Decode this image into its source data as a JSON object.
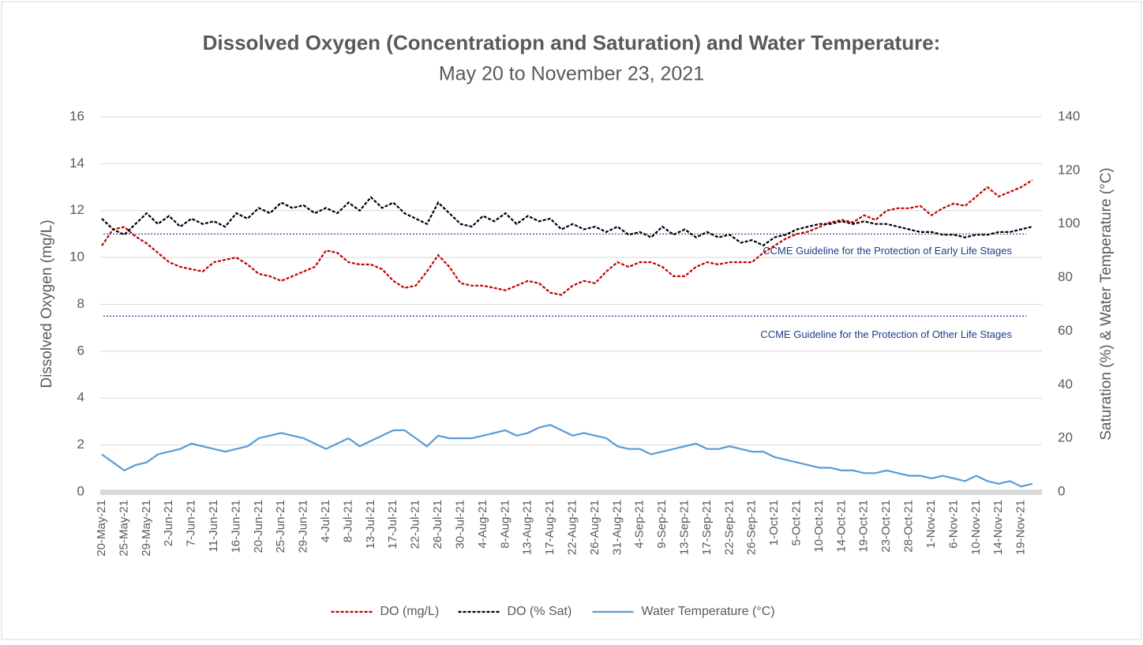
{
  "chart_data": {
    "type": "line",
    "title": "Dissolved Oxygen (Concentratiopn and Saturation) and Water Temperature:",
    "subtitle": "May 20 to November 23, 2021",
    "y_label": "Dissolved Oxygen (mg/L)",
    "y2_label": "Saturation (%) & Water Temperature (°C)",
    "categories": [
      "20-May-21",
      null,
      "25-May-21",
      null,
      "29-May-21",
      null,
      "2-Jun-21",
      null,
      "7-Jun-21",
      null,
      "11-Jun-21",
      null,
      "16-Jun-21",
      null,
      "20-Jun-21",
      null,
      "25-Jun-21",
      null,
      "29-Jun-21",
      null,
      "4-Jul-21",
      null,
      "8-Jul-21",
      null,
      "13-Jul-21",
      null,
      "17-Jul-21",
      null,
      "22-Jul-21",
      null,
      "26-Jul-21",
      null,
      "30-Jul-21",
      null,
      "4-Aug-21",
      null,
      "8-Aug-21",
      null,
      "13-Aug-21",
      null,
      "17-Aug-21",
      null,
      "22-Aug-21",
      null,
      "26-Aug-21",
      null,
      "31-Aug-21",
      null,
      "4-Sep-21",
      null,
      "9-Sep-21",
      null,
      "13-Sep-21",
      null,
      "17-Sep-21",
      null,
      "22-Sep-21",
      null,
      "26-Sep-21",
      null,
      "1-Oct-21",
      null,
      "5-Oct-21",
      null,
      "10-Oct-21",
      null,
      "14-Oct-21",
      null,
      "19-Oct-21",
      null,
      "23-Oct-21",
      null,
      "28-Oct-21",
      null,
      "1-Nov-21",
      null,
      "6-Nov-21",
      null,
      "10-Nov-21",
      null,
      "14-Nov-21",
      null,
      "19-Nov-21",
      null
    ],
    "series": [
      {
        "name": "DO (mg/L)",
        "color": "#c00000",
        "style": "dashed",
        "axis": "y",
        "values": [
          10.5,
          11.2,
          11.3,
          10.9,
          10.6,
          10.2,
          9.8,
          9.6,
          9.5,
          9.4,
          9.8,
          9.9,
          10.0,
          9.7,
          9.3,
          9.2,
          9.0,
          9.2,
          9.4,
          9.6,
          10.3,
          10.2,
          9.8,
          9.7,
          9.7,
          9.5,
          9.0,
          8.7,
          8.8,
          9.4,
          10.1,
          9.6,
          8.9,
          8.8,
          8.8,
          8.7,
          8.6,
          8.8,
          9.0,
          8.9,
          8.5,
          8.4,
          8.8,
          9.0,
          8.9,
          9.4,
          9.8,
          9.6,
          9.8,
          9.8,
          9.6,
          9.2,
          9.2,
          9.6,
          9.8,
          9.7,
          9.8,
          9.8,
          9.8,
          10.2,
          10.5,
          10.8,
          11.0,
          11.1,
          11.3,
          11.5,
          11.6,
          11.5,
          11.8,
          11.6,
          12.0,
          12.1,
          12.1,
          12.2,
          11.8,
          12.1,
          12.3,
          12.2,
          12.6,
          13.0,
          12.6,
          12.8,
          13.0,
          13.3
        ]
      },
      {
        "name": "DO (% Sat)",
        "color": "#000000",
        "style": "dashed",
        "axis": "y2",
        "values": [
          102,
          98,
          96,
          100,
          104,
          100,
          103,
          99,
          102,
          100,
          101,
          99,
          104,
          102,
          106,
          104,
          108,
          106,
          107,
          104,
          106,
          104,
          108,
          105,
          110,
          106,
          108,
          104,
          102,
          100,
          108,
          104,
          100,
          99,
          103,
          101,
          104,
          100,
          103,
          101,
          102,
          98,
          100,
          98,
          99,
          97,
          99,
          96,
          97,
          95,
          99,
          96,
          98,
          95,
          97,
          95,
          96,
          93,
          94,
          92,
          95,
          96,
          98,
          99,
          100,
          100,
          101,
          100,
          101,
          100,
          100,
          99,
          98,
          97,
          97,
          96,
          96,
          95,
          96,
          96,
          97,
          97,
          98,
          99
        ]
      },
      {
        "name": "Water Temperature (°C)",
        "color": "#5b9bd5",
        "style": "solid",
        "axis": "y2",
        "values": [
          14,
          11,
          8,
          10,
          11,
          14,
          15,
          16,
          18,
          17,
          16,
          15,
          16,
          17,
          20,
          21,
          22,
          21,
          20,
          18,
          16,
          18,
          20,
          17,
          19,
          21,
          23,
          23,
          20,
          17,
          21,
          20,
          20,
          20,
          21,
          22,
          23,
          21,
          22,
          24,
          25,
          23,
          21,
          22,
          21,
          20,
          17,
          16,
          16,
          14,
          15,
          16,
          17,
          18,
          16,
          16,
          17,
          16,
          15,
          15,
          13,
          12,
          11,
          10,
          9,
          9,
          8,
          8,
          7,
          7,
          8,
          7,
          6,
          6,
          5,
          6,
          5,
          4,
          6,
          4,
          3,
          4,
          2,
          3
        ]
      }
    ],
    "reference_lines": [
      {
        "label": "CCME Guideline for the Protection of Early Life Stages",
        "value": 11,
        "color": "#1f3c88"
      },
      {
        "label": "CCME Guideline for the Protection of Other Life Stages",
        "value": 7.5,
        "color": "#1f3c88"
      }
    ],
    "ylim": [
      0,
      16
    ],
    "yticks": [
      0,
      2,
      4,
      6,
      8,
      10,
      12,
      14,
      16
    ],
    "y2lim": [
      0,
      140
    ],
    "y2ticks": [
      0,
      20,
      40,
      60,
      80,
      100,
      120,
      140
    ],
    "grid": true,
    "legend": "bottom"
  }
}
